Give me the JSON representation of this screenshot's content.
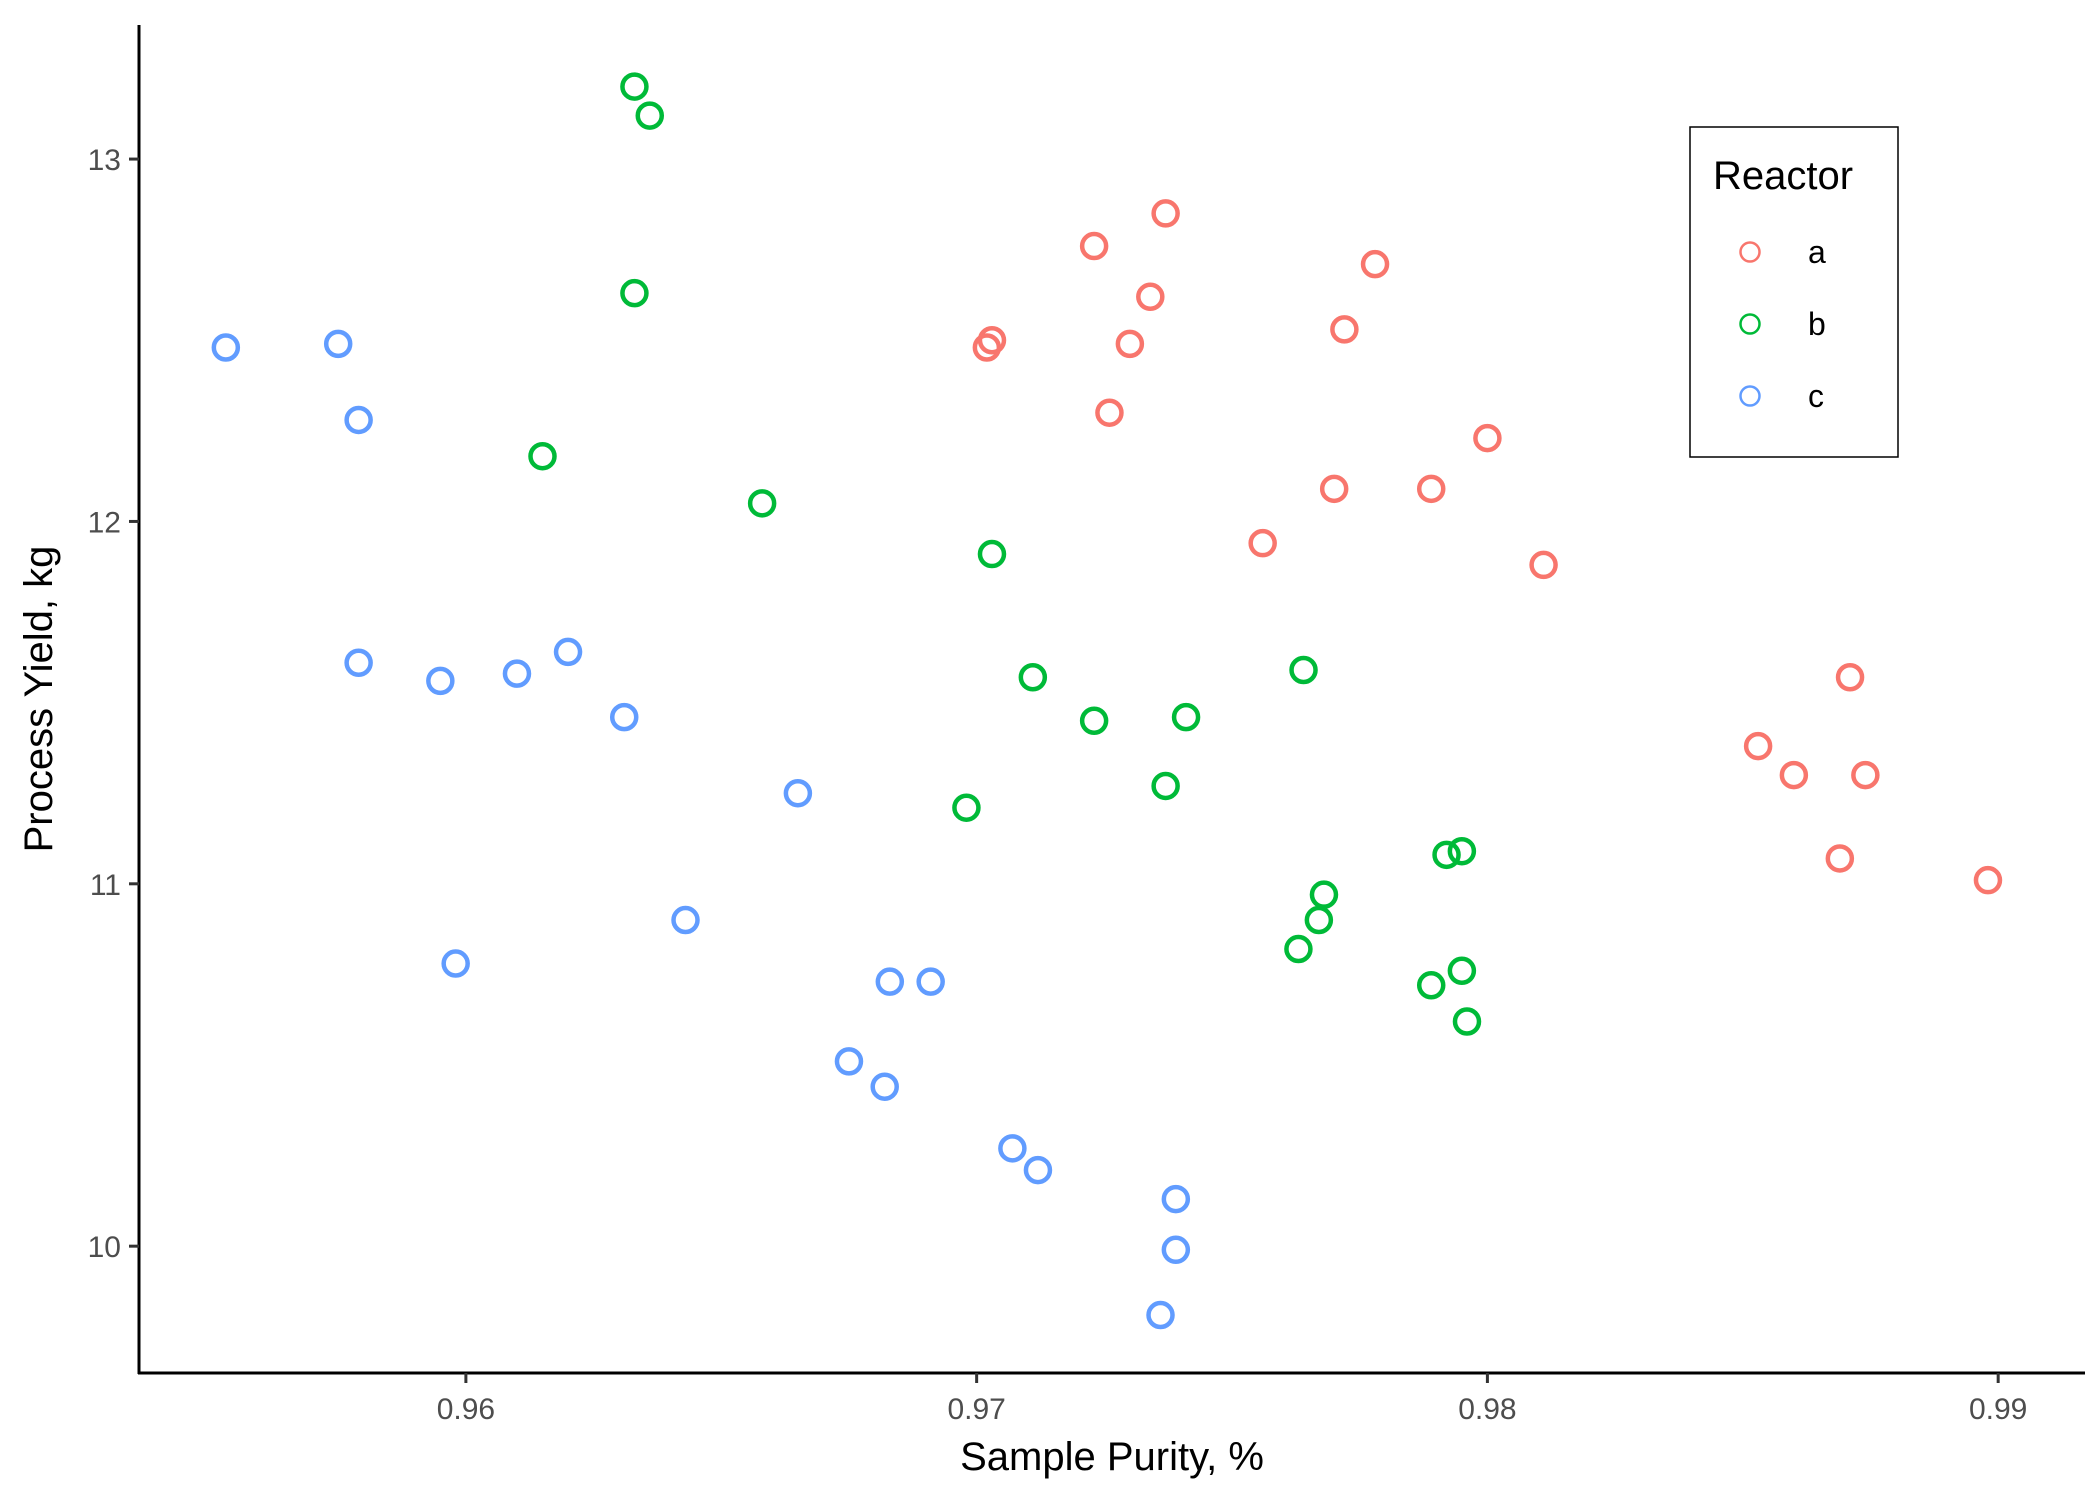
{
  "chart_data": {
    "type": "scatter",
    "title": "",
    "xlabel": "Sample Purity, %",
    "ylabel": "Process Yield, kg",
    "xlim": [
      0.9536,
      0.9917
    ],
    "ylim": [
      9.65,
      13.37
    ],
    "xticks": [
      0.96,
      0.97,
      0.98,
      0.99
    ],
    "xtick_labels": [
      "0.96",
      "0.97",
      "0.98",
      "0.99"
    ],
    "yticks": [
      10,
      11,
      12,
      13
    ],
    "ytick_labels": [
      "10",
      "11",
      "12",
      "13"
    ],
    "grid": false,
    "marker": "hollow-circle",
    "legend": {
      "title": "Reactor",
      "placement": "top-right",
      "entries": [
        {
          "label": "a",
          "color": "#F8766D"
        },
        {
          "label": "b",
          "color": "#00BA38"
        },
        {
          "label": "c",
          "color": "#619CFF"
        }
      ]
    },
    "series": [
      {
        "name": "a",
        "color": "#F8766D",
        "points": [
          {
            "x": 0.9723,
            "y": 12.76
          },
          {
            "x": 0.9737,
            "y": 12.85
          },
          {
            "x": 0.9734,
            "y": 12.62
          },
          {
            "x": 0.9778,
            "y": 12.71
          },
          {
            "x": 0.9703,
            "y": 12.5
          },
          {
            "x": 0.9702,
            "y": 12.48
          },
          {
            "x": 0.973,
            "y": 12.49
          },
          {
            "x": 0.9772,
            "y": 12.53
          },
          {
            "x": 0.9726,
            "y": 12.3
          },
          {
            "x": 0.98,
            "y": 12.23
          },
          {
            "x": 0.977,
            "y": 12.09
          },
          {
            "x": 0.9789,
            "y": 12.09
          },
          {
            "x": 0.9756,
            "y": 11.94
          },
          {
            "x": 0.9811,
            "y": 11.88
          },
          {
            "x": 0.9871,
            "y": 11.57
          },
          {
            "x": 0.9853,
            "y": 11.38
          },
          {
            "x": 0.986,
            "y": 11.3
          },
          {
            "x": 0.9874,
            "y": 11.3
          },
          {
            "x": 0.9869,
            "y": 11.07
          },
          {
            "x": 0.9898,
            "y": 11.01
          }
        ]
      },
      {
        "name": "b",
        "color": "#00BA38",
        "points": [
          {
            "x": 0.9633,
            "y": 13.2
          },
          {
            "x": 0.9636,
            "y": 13.12
          },
          {
            "x": 0.9633,
            "y": 12.63
          },
          {
            "x": 0.9615,
            "y": 12.18
          },
          {
            "x": 0.9658,
            "y": 12.05
          },
          {
            "x": 0.9703,
            "y": 11.91
          },
          {
            "x": 0.9764,
            "y": 11.59
          },
          {
            "x": 0.9711,
            "y": 11.57
          },
          {
            "x": 0.9723,
            "y": 11.45
          },
          {
            "x": 0.9741,
            "y": 11.46
          },
          {
            "x": 0.9737,
            "y": 11.27
          },
          {
            "x": 0.9698,
            "y": 11.21
          },
          {
            "x": 0.9792,
            "y": 11.08
          },
          {
            "x": 0.9795,
            "y": 11.09
          },
          {
            "x": 0.9768,
            "y": 10.97
          },
          {
            "x": 0.9767,
            "y": 10.9
          },
          {
            "x": 0.9763,
            "y": 10.82
          },
          {
            "x": 0.9795,
            "y": 10.76
          },
          {
            "x": 0.9789,
            "y": 10.72
          },
          {
            "x": 0.9796,
            "y": 10.62
          }
        ]
      },
      {
        "name": "c",
        "color": "#619CFF",
        "points": [
          {
            "x": 0.9553,
            "y": 12.48
          },
          {
            "x": 0.9575,
            "y": 12.49
          },
          {
            "x": 0.9579,
            "y": 12.28
          },
          {
            "x": 0.9579,
            "y": 11.61
          },
          {
            "x": 0.9595,
            "y": 11.56
          },
          {
            "x": 0.961,
            "y": 11.58
          },
          {
            "x": 0.962,
            "y": 11.64
          },
          {
            "x": 0.9631,
            "y": 11.46
          },
          {
            "x": 0.9665,
            "y": 11.25
          },
          {
            "x": 0.9643,
            "y": 10.9
          },
          {
            "x": 0.9598,
            "y": 10.78
          },
          {
            "x": 0.9683,
            "y": 10.73
          },
          {
            "x": 0.9691,
            "y": 10.73
          },
          {
            "x": 0.9675,
            "y": 10.51
          },
          {
            "x": 0.9682,
            "y": 10.44
          },
          {
            "x": 0.9707,
            "y": 10.27
          },
          {
            "x": 0.9712,
            "y": 10.21
          },
          {
            "x": 0.9739,
            "y": 10.13
          },
          {
            "x": 0.9739,
            "y": 9.99
          },
          {
            "x": 0.9736,
            "y": 9.81
          }
        ]
      }
    ]
  }
}
